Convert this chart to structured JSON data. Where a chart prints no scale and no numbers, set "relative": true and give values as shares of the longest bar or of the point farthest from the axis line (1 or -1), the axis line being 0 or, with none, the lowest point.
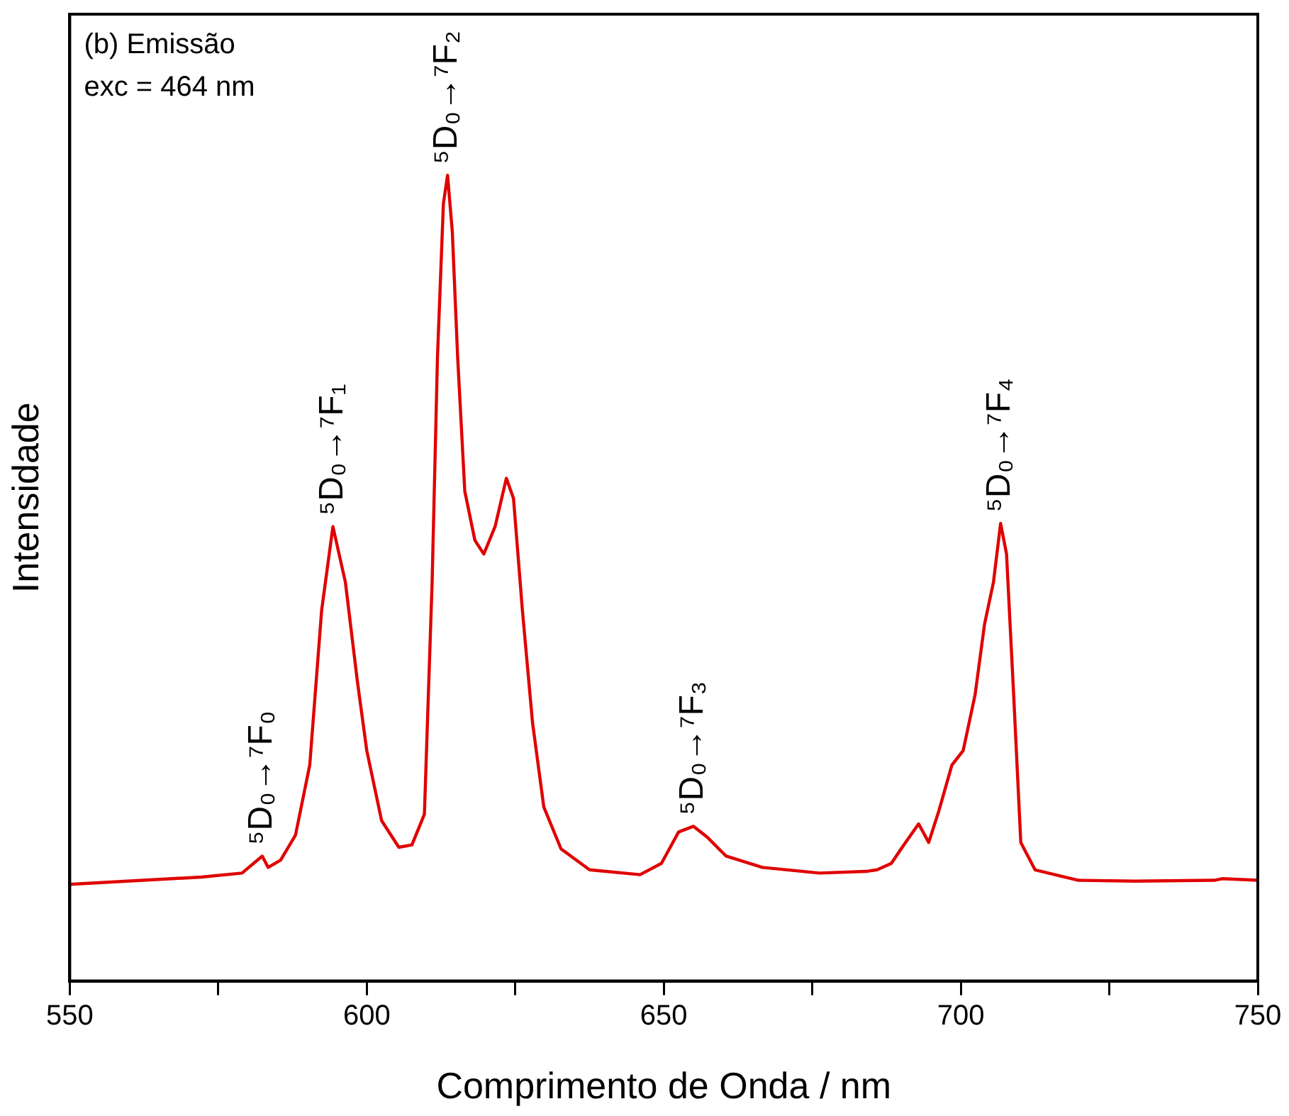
{
  "chart_data": {
    "type": "line",
    "xlabel": "Comprimento de Onda / nm",
    "ylabel": "Intensidade",
    "relative": true,
    "grid": false,
    "legend": false,
    "marker": "none",
    "line_style": "solid",
    "xlim": [
      550,
      750
    ],
    "xticks": [
      550,
      {
        "value": 575,
        "label": null
      },
      600,
      {
        "value": 625,
        "label": null
      },
      650,
      {
        "value": 675,
        "label": null
      },
      700,
      {
        "value": 725,
        "label": null
      },
      750
    ],
    "series": [
      {
        "color": "#e00000",
        "x": [
          550,
          572.2,
          579,
          582.4,
          583.4,
          585.5,
          588,
          590.4,
          592.4,
          594.3,
          596.4,
          598.4,
          600,
          602.5,
          605.4,
          607.6,
          609.7,
          611,
          611.9,
          612.9,
          613.6,
          614.4,
          615.3,
          616.5,
          618.2,
          619.7,
          621.6,
          623.5,
          624.7,
          626.2,
          627.9,
          629.8,
          632.7,
          637.5,
          646,
          649.6,
          652.5,
          655,
          657.4,
          660.5,
          666.6,
          676.2,
          684,
          685.9,
          688.3,
          690.7,
          692.9,
          694.6,
          696.3,
          698.5,
          700.4,
          702.4,
          704,
          705.5,
          706.7,
          707.7,
          708.9,
          710.1,
          712.5,
          719.8,
          729.4,
          742.7,
          744,
          750
        ],
        "values": [
          0.12,
          0.129,
          0.134,
          0.155,
          0.141,
          0.15,
          0.181,
          0.268,
          0.46,
          0.564,
          0.495,
          0.373,
          0.286,
          0.199,
          0.166,
          0.169,
          0.207,
          0.495,
          0.774,
          0.965,
          1.0,
          0.93,
          0.774,
          0.608,
          0.547,
          0.53,
          0.564,
          0.624,
          0.599,
          0.46,
          0.321,
          0.216,
          0.164,
          0.138,
          0.132,
          0.146,
          0.185,
          0.192,
          0.178,
          0.155,
          0.141,
          0.134,
          0.136,
          0.138,
          0.146,
          0.172,
          0.195,
          0.172,
          0.211,
          0.268,
          0.286,
          0.355,
          0.443,
          0.495,
          0.568,
          0.53,
          0.355,
          0.172,
          0.138,
          0.125,
          0.124,
          0.125,
          0.127,
          0.125
        ]
      }
    ],
    "annotations": [
      "(b) Emissão",
      "exc = 464 nm",
      {
        "text": "⁵D₀→⁷F₀",
        "x": 582.4,
        "y": 0.155
      },
      {
        "text": "⁵D₀→⁷F₁",
        "x": 594.3,
        "y": 0.564
      },
      {
        "text": "⁵D₀→⁷F₂",
        "x": 613.6,
        "y": 1.0
      },
      {
        "text": "⁵D₀→⁷F₃",
        "x": 655,
        "y": 0.192
      },
      {
        "text": "⁵D₀→⁷F₄",
        "x": 706.7,
        "y": 0.568
      }
    ]
  }
}
